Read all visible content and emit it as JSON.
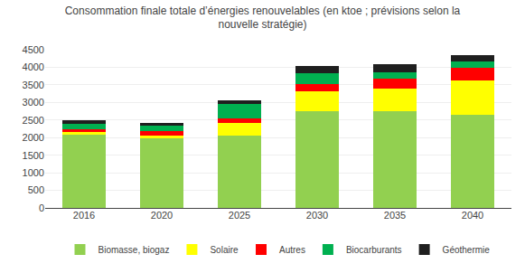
{
  "chart_data": {
    "type": "bar",
    "title": "Consommation finale totale d’énergies renouvelables (en ktoe ; prévisions selon la\nnouvelle stratégie)",
    "categories": [
      "2016",
      "2020",
      "2025",
      "2030",
      "2035",
      "2040"
    ],
    "series": [
      {
        "name": "Biomasse, biogaz",
        "color": "#92D050",
        "values": [
          2100,
          1980,
          2050,
          2750,
          2750,
          2650
        ]
      },
      {
        "name": "Solaire",
        "color": "#FFFF00",
        "values": [
          50,
          70,
          380,
          580,
          650,
          980
        ]
      },
      {
        "name": "Autres",
        "color": "#FF0000",
        "values": [
          100,
          130,
          110,
          200,
          270,
          350
        ]
      },
      {
        "name": "Biocarburants",
        "color": "#00B050",
        "values": [
          150,
          150,
          430,
          300,
          200,
          175
        ]
      },
      {
        "name": "Géothermie",
        "color": "#1F1F1F",
        "values": [
          100,
          100,
          100,
          200,
          230,
          200
        ]
      }
    ],
    "stacked": true,
    "ylim": [
      0,
      4500
    ],
    "yticks": [
      0,
      500,
      1000,
      1500,
      2000,
      2500,
      3000,
      3500,
      4000,
      4500
    ],
    "grid": true,
    "legend": "bottom"
  }
}
